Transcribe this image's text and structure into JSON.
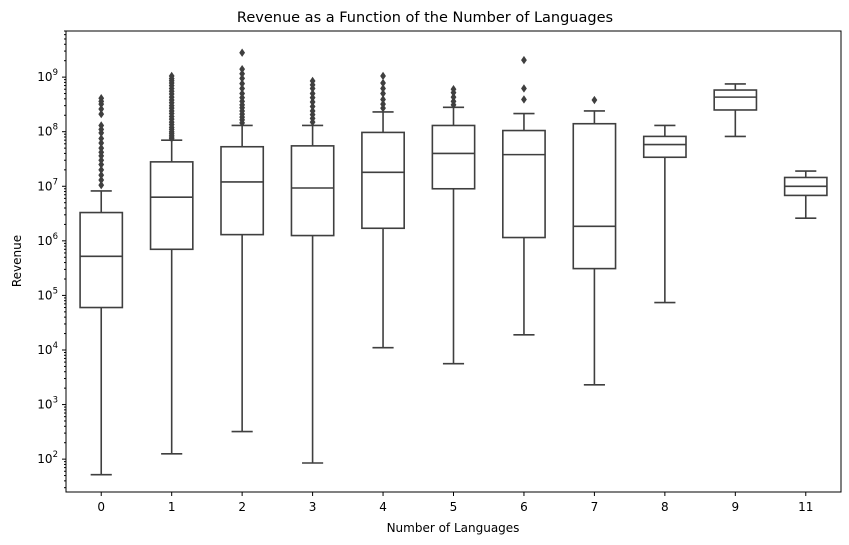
{
  "chart_data": {
    "type": "box",
    "title": "Revenue as a Function of the Number of Languages",
    "xlabel": "Number of Languages",
    "ylabel": "Revenue",
    "yscale": "log",
    "ylim": [
      25,
      7000000000
    ],
    "ytick_values": [
      100,
      1000,
      10000,
      100000,
      1000000,
      10000000,
      100000000,
      1000000000
    ],
    "ytick_labels": [
      {
        "base": "10",
        "exp": "2"
      },
      {
        "base": "10",
        "exp": "3"
      },
      {
        "base": "10",
        "exp": "4"
      },
      {
        "base": "10",
        "exp": "5"
      },
      {
        "base": "10",
        "exp": "6"
      },
      {
        "base": "10",
        "exp": "7"
      },
      {
        "base": "10",
        "exp": "8"
      },
      {
        "base": "10",
        "exp": "9"
      }
    ],
    "grid": false,
    "legend": "none",
    "categories": [
      "0",
      "1",
      "2",
      "3",
      "4",
      "5",
      "6",
      "7",
      "8",
      "9",
      "11"
    ],
    "boxes": [
      {
        "category": "0",
        "color": "#e9939f",
        "whisker_low": 52,
        "q1": 60000,
        "median": 520000,
        "q3": 3300000,
        "whisker_high": 8200000,
        "fliers": [
          10500000,
          13000000,
          16000000,
          20000000,
          25000000,
          30000000,
          36000000,
          42000000,
          50000000,
          62000000,
          75000000,
          95000000,
          110000000,
          130000000,
          210000000,
          260000000,
          320000000,
          360000000,
          410000000
        ]
      },
      {
        "category": "1",
        "color": "#dc8f4c",
        "whisker_low": 125,
        "q1": 700000,
        "median": 6300000,
        "q3": 28000000,
        "whisker_high": 70000000,
        "fliers": [
          75000000,
          80000000,
          86000000,
          93000000,
          100000000,
          110000000,
          120000000,
          135000000,
          150000000,
          170000000,
          190000000,
          215000000,
          240000000,
          270000000,
          300000000,
          340000000,
          380000000,
          430000000,
          490000000,
          550000000,
          620000000,
          700000000,
          780000000,
          860000000,
          940000000,
          1050000000
        ]
      },
      {
        "category": "2",
        "color": "#b99b44",
        "whisker_low": 320,
        "q1": 1300000,
        "median": 12000000,
        "q3": 53000000,
        "whisker_high": 130000000,
        "fliers": [
          145000000,
          165000000,
          185000000,
          210000000,
          240000000,
          275000000,
          310000000,
          360000000,
          420000000,
          500000000,
          620000000,
          760000000,
          950000000,
          1150000000,
          1400000000,
          2800000000
        ]
      },
      {
        "category": "3",
        "color": "#8ea747",
        "whisker_low": 85,
        "q1": 1250000,
        "median": 9300000,
        "q3": 55000000,
        "whisker_high": 130000000,
        "fliers": [
          150000000,
          175000000,
          205000000,
          240000000,
          290000000,
          350000000,
          420000000,
          500000000,
          620000000,
          720000000,
          850000000
        ]
      },
      {
        "category": "4",
        "color": "#44ad5f",
        "whisker_low": 11000,
        "q1": 1700000,
        "median": 18000000,
        "q3": 97000000,
        "whisker_high": 230000000,
        "fliers": [
          270000000,
          320000000,
          390000000,
          500000000,
          620000000,
          780000000,
          1050000000
        ]
      },
      {
        "category": "5",
        "color": "#3aab8e",
        "whisker_low": 5600,
        "q1": 9000000,
        "median": 40000000,
        "q3": 130000000,
        "whisker_high": 280000000,
        "fliers": [
          310000000,
          360000000,
          430000000,
          520000000,
          600000000
        ]
      },
      {
        "category": "6",
        "color": "#3ea7a6",
        "whisker_low": 19000,
        "q1": 1150000,
        "median": 38000000,
        "q3": 105000000,
        "whisker_high": 215000000,
        "fliers": [
          390000000,
          620000000,
          2050000000
        ]
      },
      {
        "category": "7",
        "color": "#47a6d3",
        "whisker_low": 2300,
        "q1": 310000,
        "median": 1850000,
        "q3": 140000000,
        "whisker_high": 240000000,
        "fliers": [
          380000000
        ]
      },
      {
        "category": "8",
        "color": "#a9a8ef",
        "whisker_low": 74000,
        "q1": 34000000,
        "median": 58000000,
        "q3": 82000000,
        "whisker_high": 130000000,
        "fliers": []
      },
      {
        "category": "9",
        "color": "#d893e6",
        "whisker_low": 82000000,
        "q1": 250000000,
        "median": 430000000,
        "q3": 580000000,
        "whisker_high": 750000000,
        "fliers": []
      },
      {
        "category": "11",
        "color": "#e98ecb",
        "whisker_low": 2600000,
        "q1": 6800000,
        "median": 10000000,
        "q3": 14500000,
        "whisker_high": 19000000,
        "fliers": []
      }
    ]
  }
}
